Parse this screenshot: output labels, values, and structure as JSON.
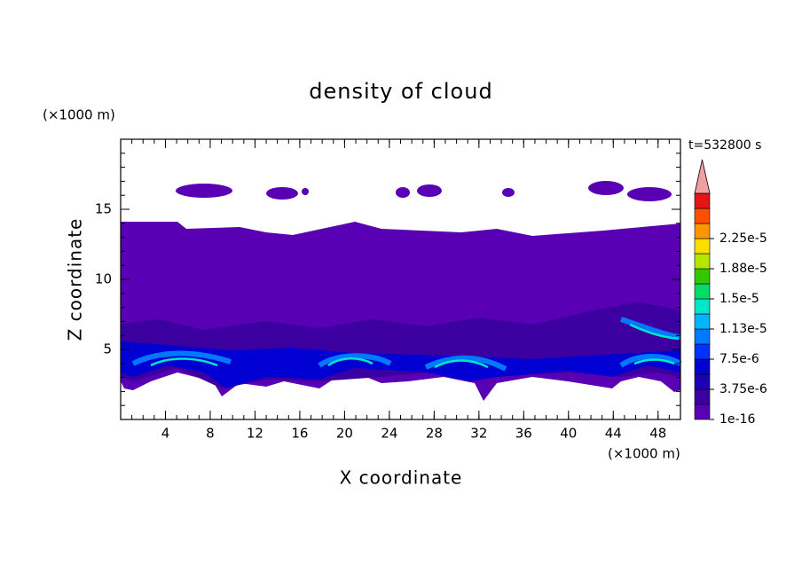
{
  "chart_data": {
    "type": "contour",
    "title": "density of cloud",
    "x_label": "X coordinate",
    "y_label": "Z coordinate",
    "x_unit": "(×1000 m)",
    "y_unit": "(×1000 m)",
    "time_label": "t=532800 s",
    "xlim": [
      0,
      50
    ],
    "ylim": [
      0,
      20
    ],
    "xticks": [
      4,
      8,
      12,
      16,
      20,
      24,
      28,
      32,
      36,
      40,
      44,
      48
    ],
    "yticks": [
      5,
      10,
      15
    ],
    "colorbar": {
      "ticks": [
        1e-16,
        {
          "value": 3.75e-06,
          "label": "3.75e-6"
        },
        {
          "value": 7.5e-06,
          "label": "7.5e-6"
        },
        {
          "value": 1.13e-05,
          "label": "1.13e-5"
        },
        {
          "value": 1.5e-05,
          "label": "1.5e-5"
        },
        {
          "value": 1.88e-05,
          "label": "1.88e-5"
        },
        {
          "value": 2.25e-05,
          "label": "2.25e-5"
        }
      ],
      "colors": [
        "#5a00b4",
        "#3c00a0",
        "#1e00b4",
        "#0000d2",
        "#0032ff",
        "#0078ff",
        "#00b4ff",
        "#00e6c8",
        "#00dc64",
        "#32c800",
        "#b4e600",
        "#ffdc00",
        "#ff9600",
        "#ff5000",
        "#e61414"
      ],
      "extend_color": "#f0a0a0"
    }
  }
}
